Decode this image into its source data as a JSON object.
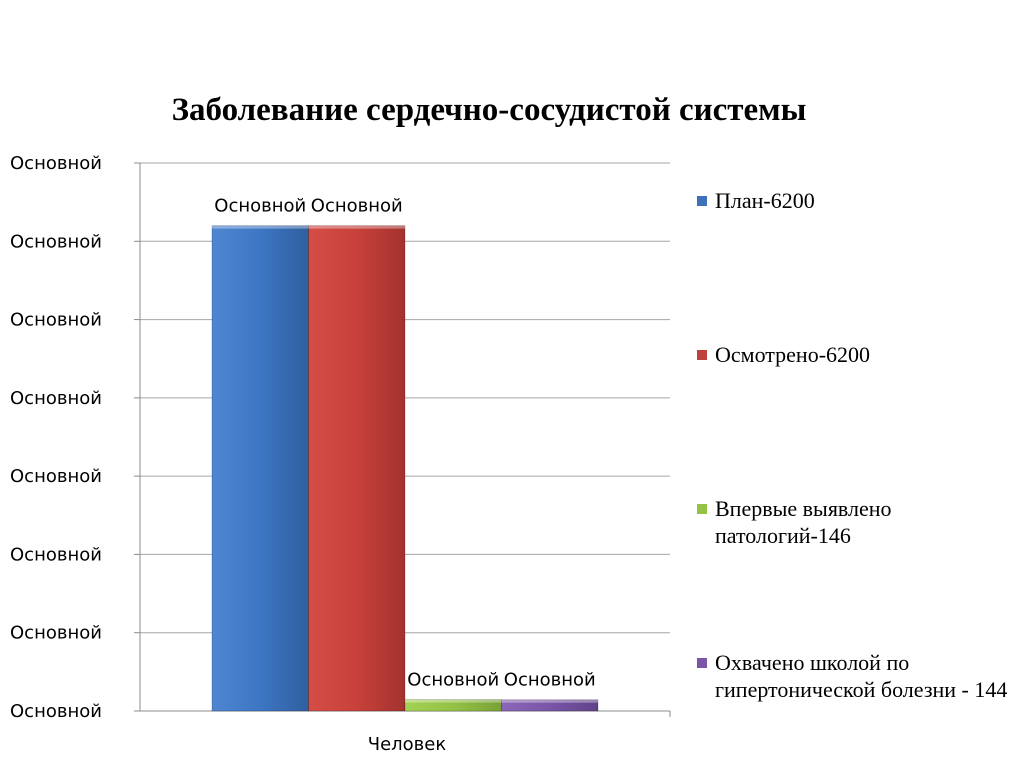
{
  "chart_data": {
    "type": "bar",
    "title": "Заболевание сердечно-сосудистой системы",
    "categories": [
      "Человек"
    ],
    "series": [
      {
        "name": "План-6200",
        "values": [
          6200
        ],
        "color": "#3d72bb",
        "data_label": "Основной"
      },
      {
        "name": "Осмотрено-6200",
        "values": [
          6200
        ],
        "color": "#c0403b",
        "data_label": "Основной"
      },
      {
        "name": "Впервые выявлено патологий-146",
        "values": [
          146
        ],
        "color": "#94c245",
        "data_label": "Основной"
      },
      {
        "name": "Охвачено школой по гипертонической болезни - 144",
        "values": [
          144
        ],
        "color": "#7a55a8",
        "data_label": "Основной"
      }
    ],
    "y_tick_labels": [
      "Основной",
      "Основной",
      "Основной",
      "Основной",
      "Основной",
      "Основной",
      "Основной",
      "Основной"
    ],
    "ylim": [
      0,
      7000
    ],
    "y_tick_step": 1000,
    "grid": true,
    "legend_position": "right"
  }
}
